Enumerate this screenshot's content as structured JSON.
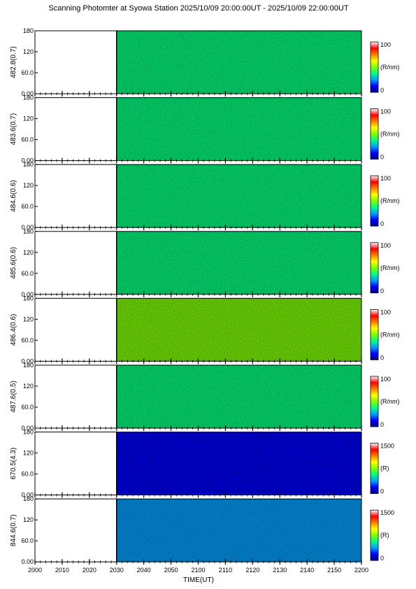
{
  "chart_data": {
    "type": "heatmap",
    "title": "Scanning Photomter at Syowa Station 2025/10/09 20:00:00UT - 2025/10/09 22:00:00UT",
    "xlabel": "TIME(UT)",
    "x_ticks": [
      "2000",
      "2010",
      "2020",
      "2030",
      "2040",
      "2050",
      "2100",
      "2110",
      "2120",
      "2130",
      "2140",
      "2150",
      "2200"
    ],
    "xlim": [
      "2000",
      "2200"
    ],
    "data_start": "2030",
    "y_ticks": [
      "0.00",
      "60.0",
      "120",
      "180"
    ],
    "ylim": [
      0,
      180
    ],
    "colormap": [
      "#000080",
      "#0000ff",
      "#00a0ff",
      "#00ff80",
      "#80ff00",
      "#ffff00",
      "#ff8000",
      "#ff0000",
      "#ffffff"
    ],
    "panels": [
      {
        "ylabel": "482.8(0.7)",
        "colorbar": {
          "max": "100",
          "min": "0",
          "unit": "(R/nm)"
        },
        "mean_level": 0.4
      },
      {
        "ylabel": "483.6(0.7)",
        "colorbar": {
          "max": "100",
          "min": "0",
          "unit": "(R/nm)"
        },
        "mean_level": 0.4
      },
      {
        "ylabel": "484.6(0.6)",
        "colorbar": {
          "max": "100",
          "min": "0",
          "unit": "(R/nm)"
        },
        "mean_level": 0.42
      },
      {
        "ylabel": "485.6(0.6)",
        "colorbar": {
          "max": "100",
          "min": "0",
          "unit": "(R/nm)"
        },
        "mean_level": 0.4
      },
      {
        "ylabel": "486.4(0.6)",
        "colorbar": {
          "max": "100",
          "min": "0",
          "unit": "(R/nm)"
        },
        "mean_level": 0.55
      },
      {
        "ylabel": "487.6(0.5)",
        "colorbar": {
          "max": "100",
          "min": "0",
          "unit": "(R/nm)"
        },
        "mean_level": 0.38
      },
      {
        "ylabel": "670.5(4.3)",
        "colorbar": {
          "max": "1500",
          "min": "0",
          "unit": "(R)"
        },
        "mean_level": 0.18
      },
      {
        "ylabel": "844.6(0.7)",
        "colorbar": {
          "max": "1500",
          "min": "0",
          "unit": "(R)"
        },
        "mean_level": 0.3
      }
    ]
  }
}
